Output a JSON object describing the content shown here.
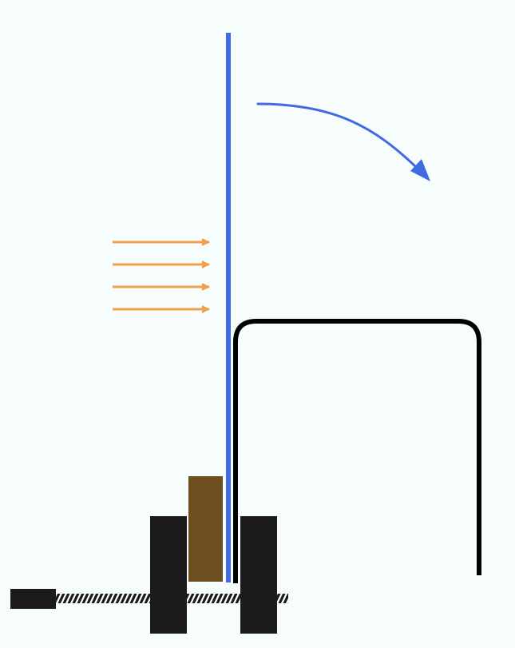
{
  "diagram": {
    "background": "#f7fdfd",
    "colors": {
      "rod": "#4169e1",
      "rotation_arrow": "#4169e1",
      "force_arrows": "#f0a04b",
      "frame": "#000000",
      "clamp_blocks": "#1b1b1b",
      "wood_block": "#6e5020",
      "threaded_rod_stripe": "#ffffff"
    },
    "elements": {
      "rod": "vertical-rod",
      "rotation": "curved-rotation-arrow",
      "forces": "horizontal-force-arrows",
      "frame": "rounded-frame",
      "clamp": "screw-clamp"
    },
    "force_arrow_count": 4
  }
}
